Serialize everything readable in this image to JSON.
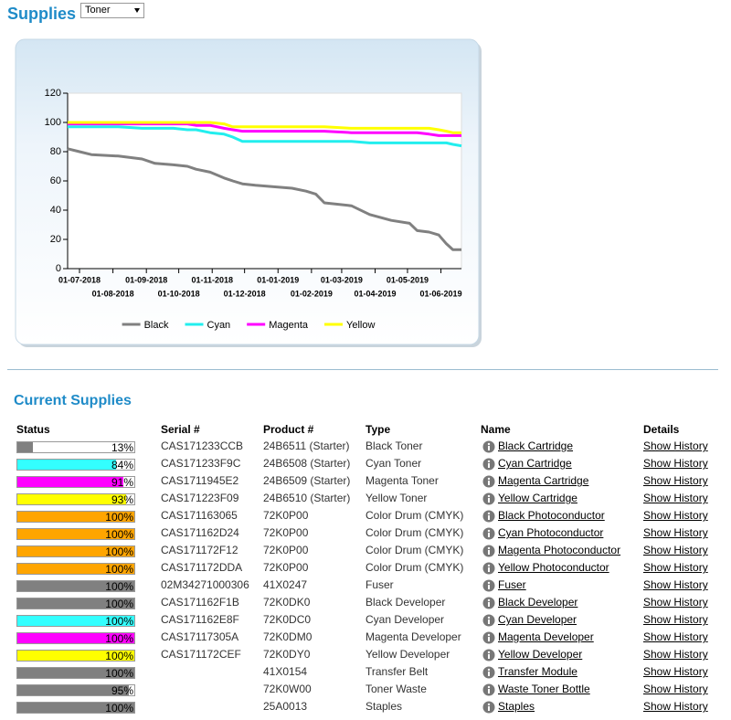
{
  "header": {
    "title": "Supplies",
    "select": "Toner"
  },
  "chart_data": {
    "type": "line",
    "x": [
      "2018-06-20",
      "2018-07-01",
      "2018-07-12",
      "2018-08-06",
      "2018-08-28",
      "2018-09-09",
      "2018-09-26",
      "2018-10-09",
      "2018-10-17",
      "2018-10-30",
      "2018-11-12",
      "2018-11-20",
      "2018-11-29",
      "2018-12-11",
      "2018-12-28",
      "2019-01-14",
      "2019-01-27",
      "2019-02-05",
      "2019-02-13",
      "2019-03-10",
      "2019-03-27",
      "2019-04-16",
      "2019-05-03",
      "2019-05-10",
      "2019-05-21",
      "2019-05-30",
      "2019-06-06",
      "2019-06-12",
      "2019-06-20"
    ],
    "xlim": [
      "2018-06-20",
      "2019-06-20"
    ],
    "xticks": [
      {
        "value": "2018-07-01",
        "label": "01-07-2018"
      },
      {
        "value": "2018-08-01",
        "label": "01-08-2018"
      },
      {
        "value": "2018-09-01",
        "label": "01-09-2018"
      },
      {
        "value": "2018-10-01",
        "label": "01-10-2018"
      },
      {
        "value": "2018-11-01",
        "label": "01-11-2018"
      },
      {
        "value": "2018-12-01",
        "label": "01-12-2018"
      },
      {
        "value": "2019-01-01",
        "label": "01-01-2019"
      },
      {
        "value": "2019-02-01",
        "label": "01-02-2019"
      },
      {
        "value": "2019-03-01",
        "label": "01-03-2019"
      },
      {
        "value": "2019-04-01",
        "label": "01-04-2019"
      },
      {
        "value": "2019-05-01",
        "label": "01-05-2019"
      },
      {
        "value": "2019-06-01",
        "label": "01-06-2019"
      }
    ],
    "ylim": [
      0,
      120
    ],
    "yticks": [
      0,
      20,
      40,
      60,
      80,
      100,
      120
    ],
    "legend": "bottom",
    "series": [
      {
        "name": "Black",
        "color": "#808080",
        "values": [
          82,
          80,
          78,
          77,
          75,
          72,
          71,
          70,
          68,
          66,
          62,
          60,
          58,
          57,
          56,
          55,
          53,
          51,
          45,
          43,
          37,
          33,
          31,
          26,
          25,
          23,
          17,
          13,
          13
        ]
      },
      {
        "name": "Cyan",
        "color": "#22eeee",
        "values": [
          97,
          97,
          97,
          97,
          96,
          96,
          96,
          95,
          95,
          93,
          92,
          90,
          87,
          87,
          87,
          87,
          87,
          87,
          87,
          87,
          86,
          86,
          86,
          86,
          86,
          86,
          86,
          85,
          84
        ]
      },
      {
        "name": "Magenta",
        "color": "#ff00ff",
        "values": [
          99,
          99,
          99,
          99,
          99,
          99,
          99,
          99,
          98,
          98,
          96,
          95,
          94,
          94,
          94,
          94,
          94,
          94,
          94,
          93,
          93,
          93,
          93,
          93,
          92,
          91,
          91,
          91,
          91
        ]
      },
      {
        "name": "Yellow",
        "color": "#ffff00",
        "values": [
          100,
          100,
          100,
          100,
          100,
          100,
          100,
          100,
          100,
          100,
          99,
          97,
          97,
          97,
          97,
          97,
          97,
          97,
          97,
          96,
          96,
          96,
          96,
          96,
          96,
          95,
          94,
          93,
          93
        ]
      }
    ]
  },
  "section_title": "Current Supplies",
  "table": {
    "columns": [
      "Status",
      "Serial #",
      "Product #",
      "Type",
      "Name",
      "Details"
    ],
    "rows": [
      {
        "level": 13,
        "level_label": "13%",
        "color": "#808080",
        "serial": "CAS171233CCB",
        "product": "24B6511 (Starter)",
        "type": "Black Toner",
        "name": "Black Cartridge",
        "details": "Show History"
      },
      {
        "level": 84,
        "level_label": "84%",
        "color": "#33ffff",
        "serial": "CAS171233F9C",
        "product": "24B6508 (Starter)",
        "type": "Cyan Toner",
        "name": "Cyan Cartridge",
        "details": "Show History"
      },
      {
        "level": 91,
        "level_label": "91%",
        "color": "#ff00ff",
        "serial": "CAS1711945E2",
        "product": "24B6509 (Starter)",
        "type": "Magenta Toner",
        "name": "Magenta Cartridge",
        "details": "Show History"
      },
      {
        "level": 93,
        "level_label": "93%",
        "color": "#ffff00",
        "serial": "CAS171223F09",
        "product": "24B6510 (Starter)",
        "type": "Yellow Toner",
        "name": "Yellow Cartridge",
        "details": "Show History"
      },
      {
        "level": 100,
        "level_label": "100%",
        "color": "#ffa500",
        "serial": "CAS171163065",
        "product": "72K0P00",
        "type": "Color Drum (CMYK)",
        "name": "Black Photoconductor",
        "details": "Show History"
      },
      {
        "level": 100,
        "level_label": "100%",
        "color": "#ffa500",
        "serial": "CAS171162D24",
        "product": "72K0P00",
        "type": "Color Drum (CMYK)",
        "name": "Cyan Photoconductor",
        "details": "Show History"
      },
      {
        "level": 100,
        "level_label": "100%",
        "color": "#ffa500",
        "serial": "CAS171172F12",
        "product": "72K0P00",
        "type": "Color Drum (CMYK)",
        "name": "Magenta Photoconductor",
        "details": "Show History"
      },
      {
        "level": 100,
        "level_label": "100%",
        "color": "#ffa500",
        "serial": "CAS171172DDA",
        "product": "72K0P00",
        "type": "Color Drum (CMYK)",
        "name": "Yellow Photoconductor",
        "details": "Show History"
      },
      {
        "level": 100,
        "level_label": "100%",
        "color": "#808080",
        "serial": "02M34271000306",
        "product": "41X0247",
        "type": "Fuser",
        "name": "Fuser",
        "details": "Show History"
      },
      {
        "level": 100,
        "level_label": "100%",
        "color": "#808080",
        "serial": "CAS171162F1B",
        "product": "72K0DK0",
        "type": "Black Developer",
        "name": "Black Developer",
        "details": "Show History"
      },
      {
        "level": 100,
        "level_label": "100%",
        "color": "#33ffff",
        "serial": "CAS171162E8F",
        "product": "72K0DC0",
        "type": "Cyan Developer",
        "name": "Cyan Developer",
        "details": "Show History"
      },
      {
        "level": 100,
        "level_label": "100%",
        "color": "#ff00ff",
        "serial": "CAS17117305A",
        "product": "72K0DM0",
        "type": "Magenta Developer",
        "name": "Magenta Developer",
        "details": "Show History"
      },
      {
        "level": 100,
        "level_label": "100%",
        "color": "#ffff00",
        "serial": "CAS171172CEF",
        "product": "72K0DY0",
        "type": "Yellow Developer",
        "name": "Yellow Developer",
        "details": "Show History"
      },
      {
        "level": 100,
        "level_label": "100%",
        "color": "#808080",
        "product": "41X0154",
        "type": "Transfer Belt",
        "name": "Transfer Module",
        "details": "Show History"
      },
      {
        "level": 95,
        "level_label": "95%",
        "color": "#808080",
        "product": "72K0W00",
        "type": "Toner Waste",
        "name": "Waste Toner Bottle",
        "details": "Show History"
      },
      {
        "level": 100,
        "level_label": "100%",
        "color": "#808080",
        "product": "25A0013",
        "type": "Staples",
        "name": "Staples",
        "details": "Show History"
      }
    ]
  }
}
